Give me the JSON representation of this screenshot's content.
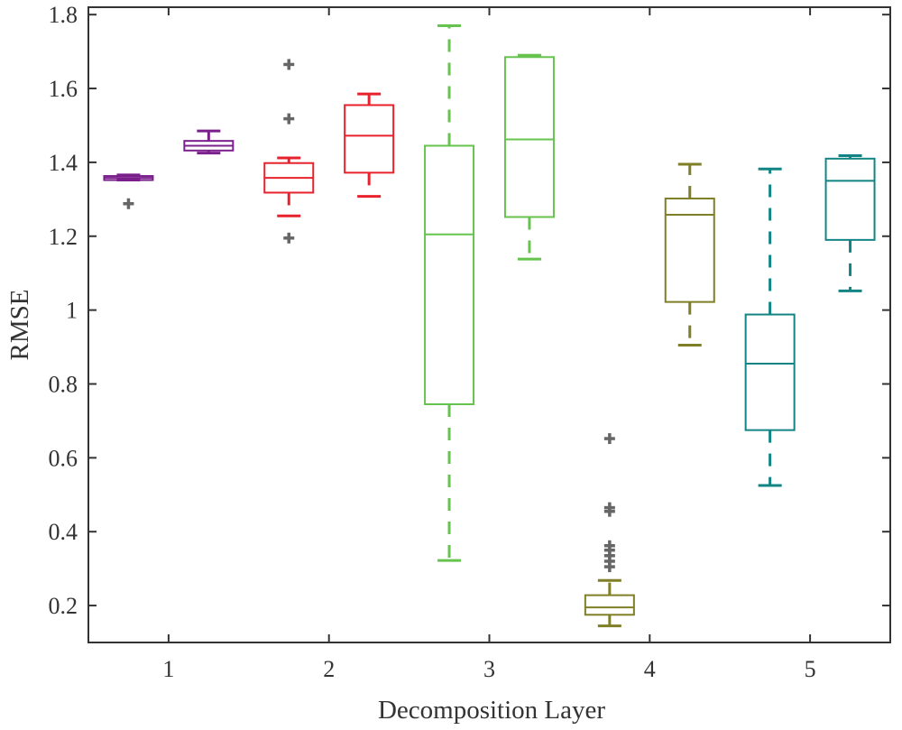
{
  "chart_data": {
    "type": "boxplot",
    "xlabel": "Decomposition Layer",
    "ylabel": "RMSE",
    "ylim": [
      0.1,
      1.82
    ],
    "yticks": [
      "0.2",
      "0.4",
      "0.6",
      "0.8",
      "1",
      "1.2",
      "1.4",
      "1.6",
      "1.8"
    ],
    "ytick_values": [
      0.2,
      0.4,
      0.6,
      0.8,
      1.0,
      1.2,
      1.4,
      1.6,
      1.8
    ],
    "xlim": [
      0.5,
      5.5
    ],
    "xticks": [
      "1",
      "2",
      "3",
      "4",
      "5"
    ],
    "xtick_values": [
      1,
      2,
      3,
      4,
      5
    ],
    "outlier_color": "#666666",
    "boxes": [
      {
        "name": "layer-1-box-a",
        "x": 0.75,
        "color": "#7B1F8C",
        "q1": 1.352,
        "median": 1.358,
        "q3": 1.363,
        "whisker_low": 1.352,
        "whisker_high": 1.366,
        "outliers": [
          1.288
        ]
      },
      {
        "name": "layer-1-box-b",
        "x": 1.25,
        "color": "#7B1F8C",
        "q1": 1.432,
        "median": 1.445,
        "q3": 1.458,
        "whisker_low": 1.425,
        "whisker_high": 1.485,
        "outliers": []
      },
      {
        "name": "layer-2-box-a",
        "x": 1.75,
        "color": "#E8222C",
        "q1": 1.318,
        "median": 1.358,
        "q3": 1.398,
        "whisker_low": 1.255,
        "whisker_high": 1.412,
        "outliers": [
          1.195,
          1.518,
          1.665
        ]
      },
      {
        "name": "layer-2-box-b",
        "x": 2.25,
        "color": "#E8222C",
        "q1": 1.372,
        "median": 1.472,
        "q3": 1.555,
        "whisker_low": 1.308,
        "whisker_high": 1.585,
        "outliers": []
      },
      {
        "name": "layer-3-box-a",
        "x": 2.75,
        "color": "#66C34D",
        "q1": 0.745,
        "median": 1.205,
        "q3": 1.445,
        "whisker_low": 0.322,
        "whisker_high": 1.77,
        "outliers": []
      },
      {
        "name": "layer-3-box-b",
        "x": 3.25,
        "color": "#66C34D",
        "q1": 1.252,
        "median": 1.462,
        "q3": 1.685,
        "whisker_low": 1.138,
        "whisker_high": 1.69,
        "outliers": []
      },
      {
        "name": "layer-4-box-a",
        "x": 3.75,
        "color": "#7F7F27",
        "q1": 0.175,
        "median": 0.195,
        "q3": 0.228,
        "whisker_low": 0.145,
        "whisker_high": 0.268,
        "outliers": [
          0.305,
          0.32,
          0.335,
          0.35,
          0.362,
          0.455,
          0.465,
          0.652
        ]
      },
      {
        "name": "layer-4-box-b",
        "x": 4.25,
        "color": "#7F7F27",
        "q1": 1.022,
        "median": 1.258,
        "q3": 1.302,
        "whisker_low": 0.905,
        "whisker_high": 1.395,
        "outliers": []
      },
      {
        "name": "layer-5-box-a",
        "x": 4.75,
        "color": "#128484",
        "q1": 0.675,
        "median": 0.855,
        "q3": 0.988,
        "whisker_low": 0.525,
        "whisker_high": 1.382,
        "outliers": []
      },
      {
        "name": "layer-5-box-b",
        "x": 5.25,
        "color": "#128484",
        "q1": 1.19,
        "median": 1.35,
        "q3": 1.41,
        "whisker_low": 1.052,
        "whisker_high": 1.418,
        "outliers": []
      }
    ]
  }
}
